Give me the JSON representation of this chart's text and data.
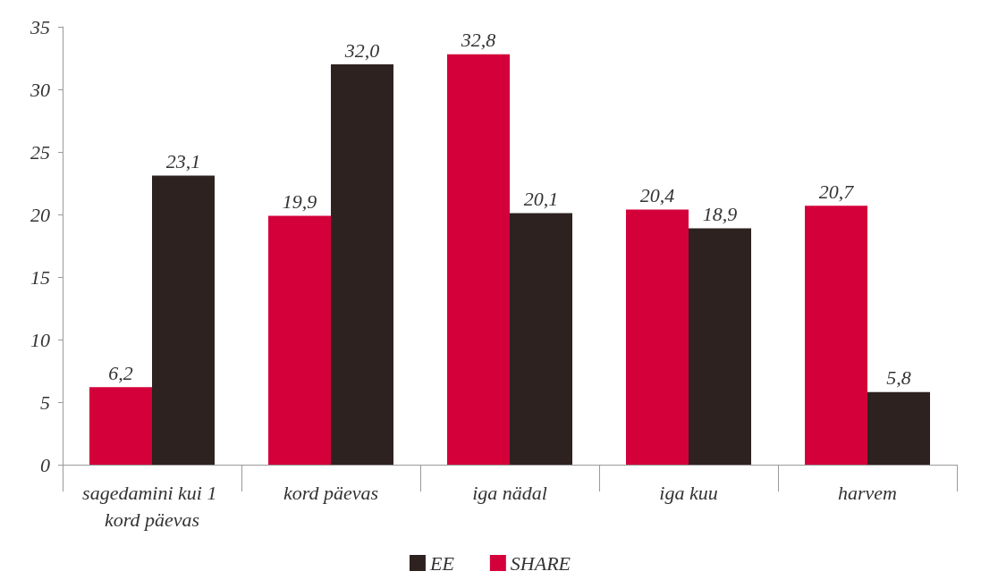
{
  "chart_data": {
    "type": "bar",
    "categories": [
      "sagedamini kui 1 kord päevas",
      "kord päevas",
      "iga nädal",
      "iga kuu",
      "harvem"
    ],
    "series": [
      {
        "name": "SHARE",
        "color": "#d4003a",
        "values": [
          6.2,
          19.9,
          32.8,
          20.4,
          20.7
        ],
        "value_labels": [
          "6,2",
          "19,9",
          "32,8",
          "20,4",
          "20,7"
        ]
      },
      {
        "name": "EE",
        "color": "#2e2220",
        "values": [
          23.1,
          32.0,
          20.1,
          18.9,
          5.8
        ],
        "value_labels": [
          "23,1",
          "32,0",
          "20,1",
          "18,9",
          "5,8"
        ]
      }
    ],
    "ylim": [
      0,
      35
    ],
    "yticks": [
      0,
      5,
      10,
      15,
      20,
      25,
      30,
      35
    ],
    "grid": false,
    "legend": "bottom"
  }
}
